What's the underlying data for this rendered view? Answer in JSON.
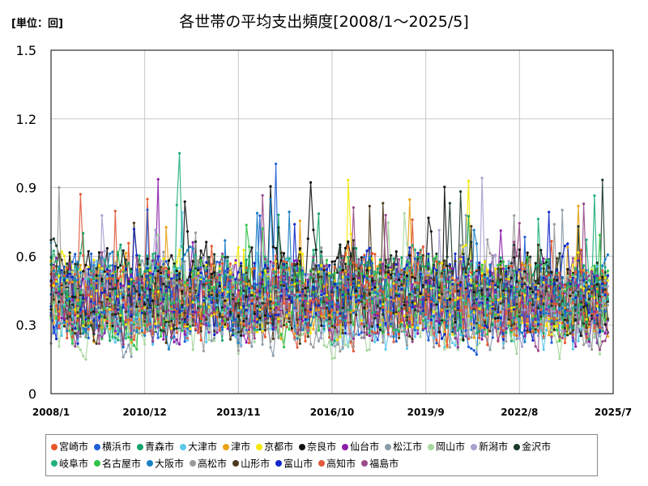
{
  "unit_label": "[単位：回]",
  "chart_data": {
    "type": "line",
    "title": "各世帯の平均支出頻度[2008/1～2025/5]",
    "xlabel": "",
    "ylabel": "",
    "ylim": [
      0,
      1.5
    ],
    "y_ticks": [
      "0",
      "0.3",
      "0.6",
      "0.9",
      "1.2",
      "1.5"
    ],
    "x_ticks": [
      "2008/1",
      "2010/12",
      "2013/11",
      "2016/10",
      "2019/9",
      "2022/8",
      "2025/7"
    ],
    "x_range": [
      "2008/1",
      "2025/7"
    ],
    "grid": true,
    "legend_position": "bottom",
    "series": [
      {
        "name": "宮崎市",
        "color": "#e8562a",
        "mean": 0.42
      },
      {
        "name": "横浜市",
        "color": "#1f5fd6",
        "mean": 0.4
      },
      {
        "name": "青森市",
        "color": "#17a36b",
        "mean": 0.44
      },
      {
        "name": "大津市",
        "color": "#5cc8ea",
        "mean": 0.38
      },
      {
        "name": "津市",
        "color": "#e8a317",
        "mean": 0.41
      },
      {
        "name": "京都市",
        "color": "#f4e800",
        "mean": 0.43
      },
      {
        "name": "奈良市",
        "color": "#111111",
        "mean": 0.45
      },
      {
        "name": "仙台市",
        "color": "#8b1fa8",
        "mean": 0.39
      },
      {
        "name": "松江市",
        "color": "#8a9ba8",
        "mean": 0.37
      },
      {
        "name": "岡山市",
        "color": "#a8d8a0",
        "mean": 0.36
      },
      {
        "name": "新潟市",
        "color": "#a8a0d0",
        "mean": 0.4
      },
      {
        "name": "金沢市",
        "color": "#1b3a2a",
        "mean": 0.46
      },
      {
        "name": "岐阜市",
        "color": "#22b07a",
        "mean": 0.44
      },
      {
        "name": "名古屋市",
        "color": "#33c24a",
        "mean": 0.42
      },
      {
        "name": "大阪市",
        "color": "#1a7fc4",
        "mean": 0.41
      },
      {
        "name": "高松市",
        "color": "#9a9a9a",
        "mean": 0.38
      },
      {
        "name": "山形市",
        "color": "#4a3a1a",
        "mean": 0.4
      },
      {
        "name": "富山市",
        "color": "#1028c8",
        "mean": 0.43
      },
      {
        "name": "高知市",
        "color": "#e05a3a",
        "mean": 0.41
      },
      {
        "name": "福島市",
        "color": "#9a4a8a",
        "mean": 0.4
      }
    ]
  }
}
